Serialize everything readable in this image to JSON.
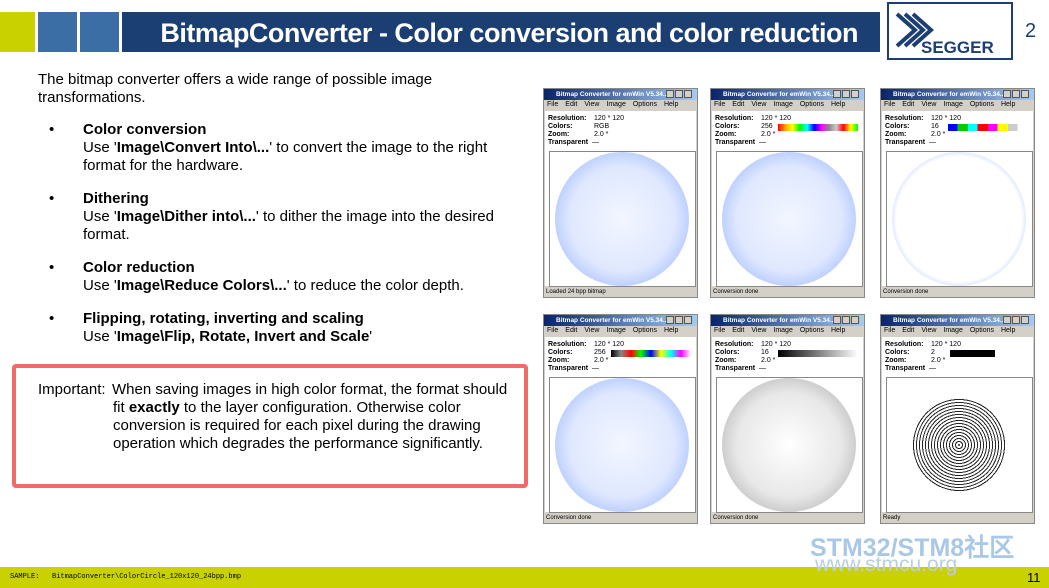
{
  "header": {
    "title": "BitmapConverter - Color conversion and color reduction",
    "chapter": "2",
    "logo": "SEGGER"
  },
  "intro": "The bitmap converter offers a wide range of possible image transformations.",
  "bullets": [
    {
      "heading": "Color conversion",
      "text": [
        "Use '",
        "Image\\Convert Into\\...",
        "' to convert the image to the right format for the hardware."
      ]
    },
    {
      "heading": "Dithering",
      "text": [
        "Use '",
        "Image\\Dither into\\...",
        "' to dither the image into the desired format."
      ]
    },
    {
      "heading": "Color reduction",
      "text": [
        "Use '",
        "Image\\Reduce Colors\\...",
        "' to reduce the color depth."
      ]
    },
    {
      "heading": "Flipping, rotating, inverting and scaling",
      "text": [
        "Use '",
        "Image\\Flip, Rotate, Invert and Scale",
        "'"
      ]
    }
  ],
  "important": {
    "label": "Important:",
    "text": [
      "When saving images in high color format, the format should fit ",
      "exactly",
      " to the layer configuration. Otherwise color conversion is required for each pixel during the drawing operation which degrades the performance significantly."
    ]
  },
  "window_labels": {
    "title": "Bitmap Converter for emWin V5.34...",
    "menu": [
      "File",
      "Edit",
      "View",
      "Image",
      "Options",
      "Help"
    ],
    "resolution": "Resolution:",
    "colors": "Colors:",
    "zoom": "Zoom:",
    "transparent": "Transparent",
    "dash": "—"
  },
  "windows": [
    {
      "resolution": "120 * 120",
      "colors": "RGB",
      "zoom": "2.0 *",
      "status": "Loaded 24 bpp bitmap"
    },
    {
      "resolution": "120 * 120",
      "colors": "256",
      "zoom": "2.0 *",
      "status": "Conversion done"
    },
    {
      "resolution": "120 * 120",
      "colors": "16",
      "zoom": "2.0 *",
      "status": "Conversion done"
    },
    {
      "resolution": "120 * 120",
      "colors": "256",
      "zoom": "2.0 *",
      "status": "Conversion done"
    },
    {
      "resolution": "120 * 120",
      "colors": "16",
      "zoom": "2.0 *",
      "status": "Conversion done"
    },
    {
      "resolution": "120 * 120",
      "colors": "2",
      "zoom": "2.0 *",
      "status": "Ready"
    }
  ],
  "footer": {
    "sample": "SAMPLE:   BitmapConverter\\ColorCircle_120x120_24bpp.bmp",
    "page": "11"
  },
  "watermark": {
    "brand": "STM32/STM8社区",
    "url": "www.stmcu.org"
  }
}
